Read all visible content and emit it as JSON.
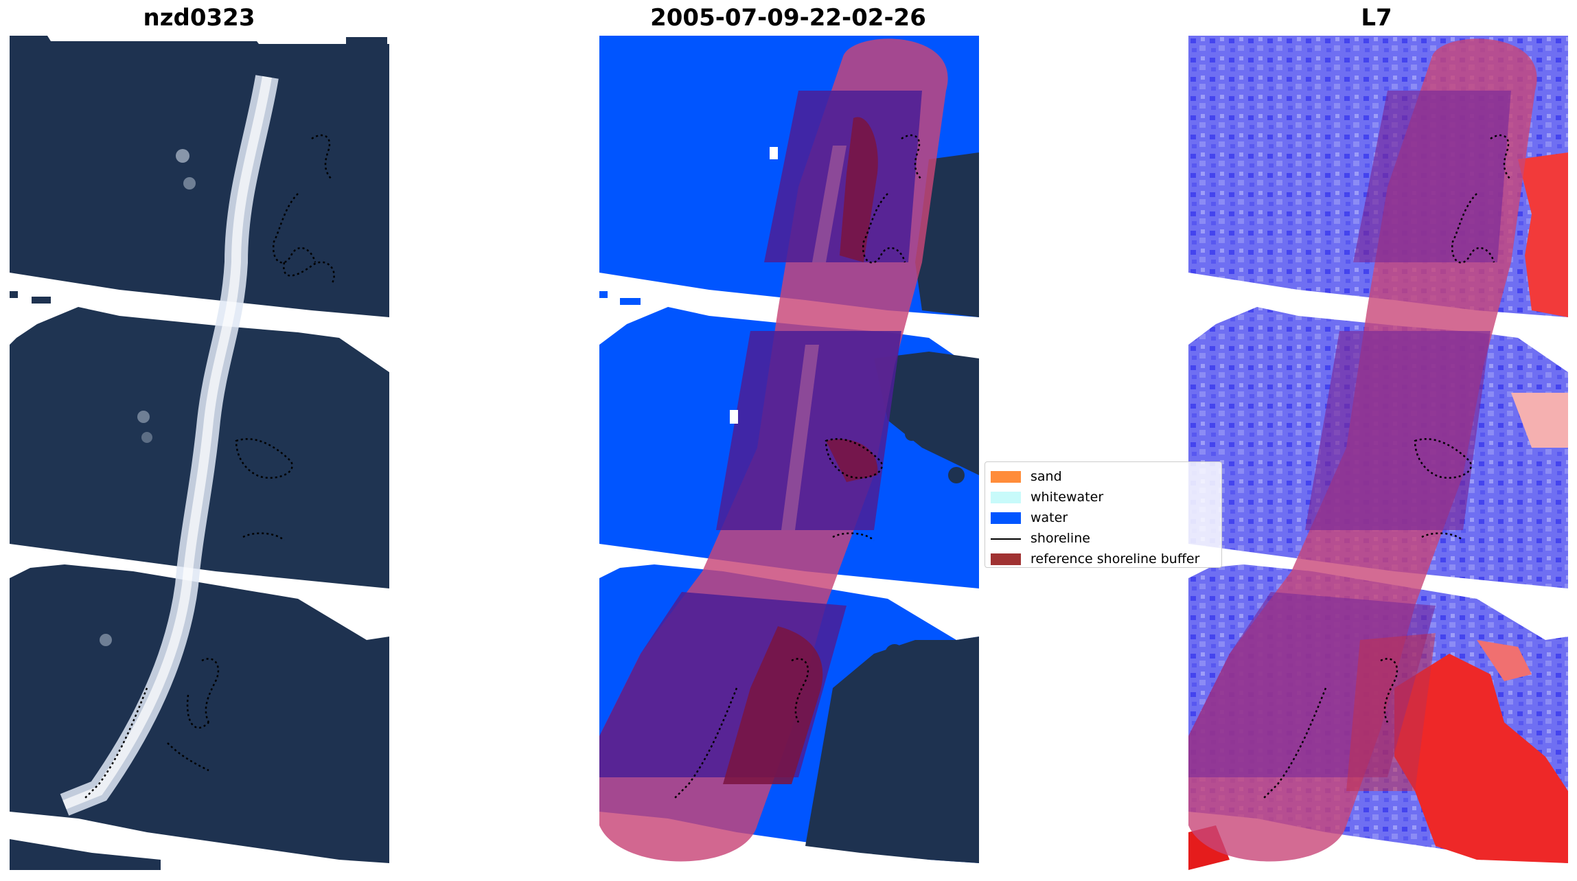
{
  "panels": [
    {
      "title": "nzd0323",
      "kind": "rgb"
    },
    {
      "title": "2005-07-09-22-02-26",
      "kind": "classified"
    },
    {
      "title": "L7",
      "kind": "index"
    }
  ],
  "legend": {
    "items": [
      {
        "label": "sand",
        "type": "patch",
        "color": "#ff8c3a"
      },
      {
        "label": "whitewater",
        "type": "patch",
        "color": "#c8fafa"
      },
      {
        "label": "water",
        "type": "patch",
        "color": "#0055ff"
      },
      {
        "label": "shoreline",
        "type": "line",
        "color": "#000000"
      },
      {
        "label": "reference shoreline buffer",
        "type": "patch",
        "color": "#a03232"
      }
    ]
  },
  "colors": {
    "rgb_background": "#1e3250",
    "water_class": "#0055ff",
    "buffer_overlay": "#c84678",
    "index_positive": "#ff2020",
    "index_negative": "#3a3aff"
  }
}
